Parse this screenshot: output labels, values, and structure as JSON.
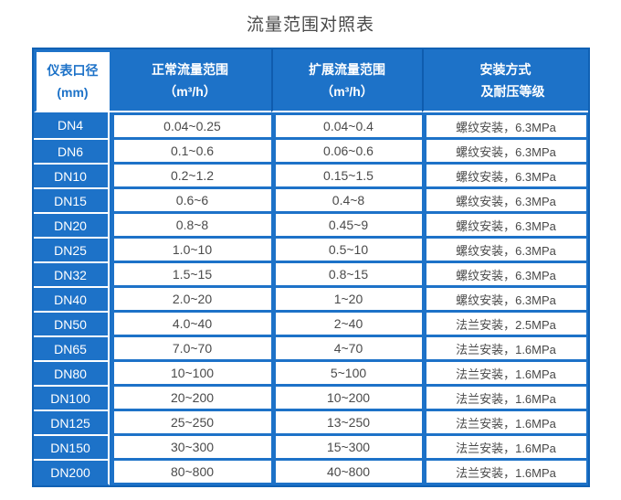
{
  "page": {
    "title": "流量范围对照表"
  },
  "colors": {
    "primary_blue": "#1d72c8",
    "dark_blue_border": "#1061b4",
    "header_separator": "#0f5cae",
    "data_text": "#4a4a4a",
    "white": "#ffffff"
  },
  "chart_data": {
    "type": "table",
    "title": "流量范围对照表",
    "headers": [
      {
        "line1": "仪表口径",
        "line2": "(mm)"
      },
      {
        "line1": "正常流量范围",
        "line2": "（m³/h）"
      },
      {
        "line1": "扩展流量范围",
        "line2": "（m³/h）"
      },
      {
        "line1": "安装方式",
        "line2": "及耐压等级"
      }
    ],
    "rows": [
      {
        "dn": "DN4",
        "normal": "0.04~0.25",
        "extended": "0.04~0.4",
        "install": "螺纹安装，6.3MPa"
      },
      {
        "dn": "DN6",
        "normal": "0.1~0.6",
        "extended": "0.06~0.6",
        "install": "螺纹安装，6.3MPa"
      },
      {
        "dn": "DN10",
        "normal": "0.2~1.2",
        "extended": "0.15~1.5",
        "install": "螺纹安装，6.3MPa"
      },
      {
        "dn": "DN15",
        "normal": "0.6~6",
        "extended": "0.4~8",
        "install": "螺纹安装，6.3MPa"
      },
      {
        "dn": "DN20",
        "normal": "0.8~8",
        "extended": "0.45~9",
        "install": "螺纹安装，6.3MPa"
      },
      {
        "dn": "DN25",
        "normal": "1.0~10",
        "extended": "0.5~10",
        "install": "螺纹安装，6.3MPa"
      },
      {
        "dn": "DN32",
        "normal": "1.5~15",
        "extended": "0.8~15",
        "install": "螺纹安装，6.3MPa"
      },
      {
        "dn": "DN40",
        "normal": "2.0~20",
        "extended": "1~20",
        "install": "螺纹安装，6.3MPa"
      },
      {
        "dn": "DN50",
        "normal": "4.0~40",
        "extended": "2~40",
        "install": "法兰安装，2.5MPa"
      },
      {
        "dn": "DN65",
        "normal": "7.0~70",
        "extended": "4~70",
        "install": "法兰安装，1.6MPa"
      },
      {
        "dn": "DN80",
        "normal": "10~100",
        "extended": "5~100",
        "install": "法兰安装，1.6MPa"
      },
      {
        "dn": "DN100",
        "normal": "20~200",
        "extended": "10~200",
        "install": "法兰安装，1.6MPa"
      },
      {
        "dn": "DN125",
        "normal": "25~250",
        "extended": "13~250",
        "install": "法兰安装，1.6MPa"
      },
      {
        "dn": "DN150",
        "normal": "30~300",
        "extended": "15~300",
        "install": "法兰安装，1.6MPa"
      },
      {
        "dn": "DN200",
        "normal": "80~800",
        "extended": "40~800",
        "install": "法兰安装，1.6MPa"
      }
    ]
  }
}
